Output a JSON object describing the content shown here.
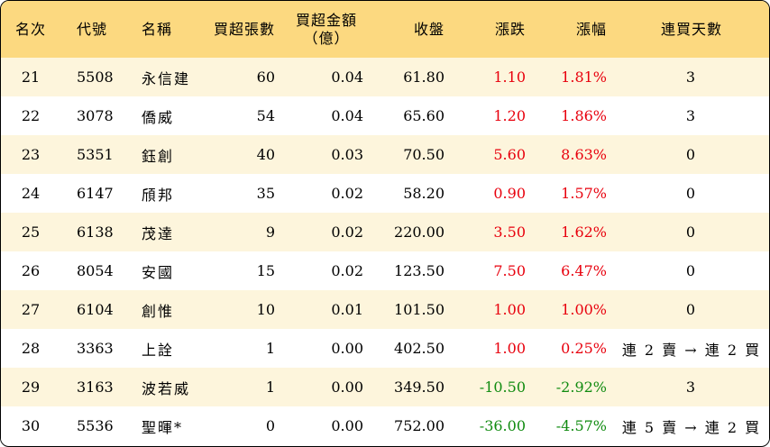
{
  "headers": {
    "rank": "名次",
    "code": "代號",
    "name": "名稱",
    "buy_lots": "買超張數",
    "buy_amount_line1": "買超金額",
    "buy_amount_line2": "（億）",
    "close": "收盤",
    "change": "漲跌",
    "pct": "漲幅",
    "consecutive_days": "連買天數"
  },
  "rows": [
    {
      "rank": "21",
      "code": "5508",
      "name": "永信建",
      "lots": "60",
      "amount": "0.04",
      "close": "61.80",
      "change": "1.10",
      "pct": "1.81%",
      "days": "3",
      "dir": "up"
    },
    {
      "rank": "22",
      "code": "3078",
      "name": "僑威",
      "lots": "54",
      "amount": "0.04",
      "close": "65.60",
      "change": "1.20",
      "pct": "1.86%",
      "days": "3",
      "dir": "up"
    },
    {
      "rank": "23",
      "code": "5351",
      "name": "鈺創",
      "lots": "40",
      "amount": "0.03",
      "close": "70.50",
      "change": "5.60",
      "pct": "8.63%",
      "days": "0",
      "dir": "up"
    },
    {
      "rank": "24",
      "code": "6147",
      "name": "頎邦",
      "lots": "35",
      "amount": "0.02",
      "close": "58.20",
      "change": "0.90",
      "pct": "1.57%",
      "days": "0",
      "dir": "up"
    },
    {
      "rank": "25",
      "code": "6138",
      "name": "茂達",
      "lots": "9",
      "amount": "0.02",
      "close": "220.00",
      "change": "3.50",
      "pct": "1.62%",
      "days": "0",
      "dir": "up"
    },
    {
      "rank": "26",
      "code": "8054",
      "name": "安國",
      "lots": "15",
      "amount": "0.02",
      "close": "123.50",
      "change": "7.50",
      "pct": "6.47%",
      "days": "0",
      "dir": "up"
    },
    {
      "rank": "27",
      "code": "6104",
      "name": "創惟",
      "lots": "10",
      "amount": "0.01",
      "close": "101.50",
      "change": "1.00",
      "pct": "1.00%",
      "days": "0",
      "dir": "up"
    },
    {
      "rank": "28",
      "code": "3363",
      "name": "上詮",
      "lots": "1",
      "amount": "0.00",
      "close": "402.50",
      "change": "1.00",
      "pct": "0.25%",
      "days": "連 2 賣 → 連 2 買",
      "dir": "up"
    },
    {
      "rank": "29",
      "code": "3163",
      "name": "波若威",
      "lots": "1",
      "amount": "0.00",
      "close": "349.50",
      "change": "-10.50",
      "pct": "-2.92%",
      "days": "3",
      "dir": "down"
    },
    {
      "rank": "30",
      "code": "5536",
      "name": "聖暉*",
      "lots": "0",
      "amount": "0.00",
      "close": "752.00",
      "change": "-36.00",
      "pct": "-4.57%",
      "days": "連 5 賣 → 連 2 買",
      "dir": "down"
    }
  ],
  "colors": {
    "header_bg": "#fcd980",
    "row_alt_bg": "#fdf5dc",
    "up": "#e8000d",
    "down": "#108b10"
  }
}
